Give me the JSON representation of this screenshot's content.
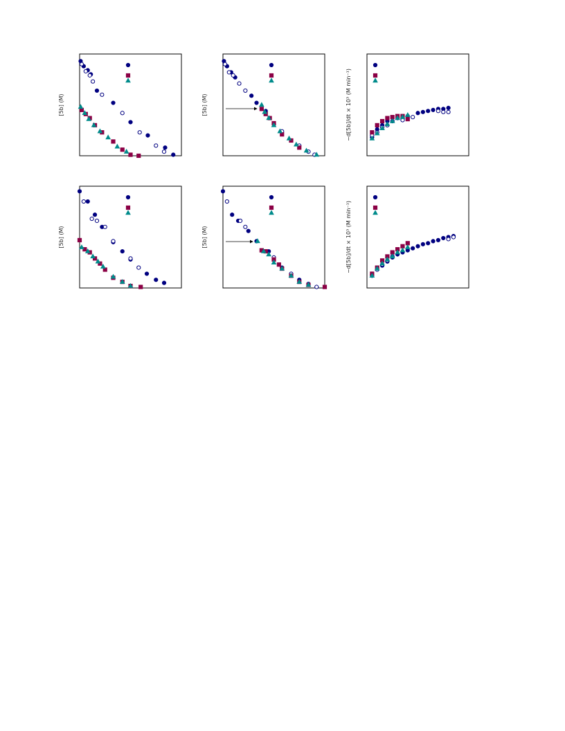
{
  "chart_data": [
    {
      "type": "scatter",
      "ylabel": "[5b] (M)",
      "xlim": [
        0,
        1
      ],
      "ylim": [
        0,
        1
      ],
      "series": [
        {
          "color": "#000080",
          "marker": "circle",
          "filled": true,
          "x": [
            0.01,
            0.04,
            0.08,
            0.11,
            0.17,
            0.33,
            0.5,
            0.67,
            0.84,
            0.92
          ],
          "values": [
            0.93,
            0.88,
            0.84,
            0.8,
            0.64,
            0.52,
            0.33,
            0.2,
            0.08,
            0.01
          ]
        },
        {
          "color": "#000080",
          "marker": "circle",
          "filled": false,
          "x": [
            0.02,
            0.06,
            0.1,
            0.13,
            0.22,
            0.42,
            0.59,
            0.75,
            0.83
          ],
          "values": [
            0.9,
            0.83,
            0.79,
            0.73,
            0.6,
            0.42,
            0.23,
            0.1,
            0.04
          ]
        },
        {
          "color": "#8b0045",
          "marker": "square",
          "filled": true,
          "x": [
            0.02,
            0.06,
            0.1,
            0.15,
            0.22,
            0.33,
            0.42,
            0.5,
            0.58
          ],
          "values": [
            0.45,
            0.41,
            0.37,
            0.3,
            0.23,
            0.14,
            0.06,
            0.01,
            0.0
          ]
        },
        {
          "color": "#008b8b",
          "marker": "triangle",
          "filled": true,
          "x": [
            0.01,
            0.05,
            0.09,
            0.14,
            0.2,
            0.28,
            0.37,
            0.46
          ],
          "values": [
            0.48,
            0.42,
            0.36,
            0.3,
            0.24,
            0.18,
            0.09,
            0.04
          ]
        }
      ]
    },
    {
      "type": "scatter",
      "ylabel": "[5b] (M)",
      "xlim": [
        0,
        1
      ],
      "ylim": [
        0,
        1
      ],
      "series": [
        {
          "color": "#000080",
          "marker": "circle",
          "filled": true,
          "x": [
            0.01,
            0.04,
            0.08,
            0.12,
            0.28,
            0.33,
            0.42
          ],
          "values": [
            0.93,
            0.88,
            0.82,
            0.77,
            0.59,
            0.52,
            0.44
          ]
        },
        {
          "color": "#000080",
          "marker": "circle",
          "filled": false,
          "x": [
            0.02,
            0.06,
            0.1,
            0.16,
            0.22,
            0.58,
            0.75,
            0.84,
            0.9
          ],
          "values": [
            0.9,
            0.82,
            0.79,
            0.71,
            0.64,
            0.24,
            0.1,
            0.04,
            0.01
          ]
        },
        {
          "color": "#8b0045",
          "marker": "square",
          "filled": true,
          "x": [
            0.38,
            0.42,
            0.46,
            0.5,
            0.58,
            0.67,
            0.75
          ],
          "values": [
            0.46,
            0.41,
            0.37,
            0.32,
            0.21,
            0.15,
            0.08
          ]
        },
        {
          "color": "#008b8b",
          "marker": "triangle",
          "filled": true,
          "x": [
            0.38,
            0.41,
            0.45,
            0.5,
            0.56,
            0.65,
            0.72,
            0.82,
            0.92
          ],
          "values": [
            0.5,
            0.43,
            0.37,
            0.3,
            0.24,
            0.17,
            0.11,
            0.05,
            0.01
          ]
        }
      ]
    },
    {
      "type": "scatter",
      "ylabel": "−d[5b]/dt × 10³ (M min⁻¹)",
      "xlim": [
        0,
        1
      ],
      "ylim": [
        0,
        1
      ],
      "series": [
        {
          "color": "#000080",
          "marker": "circle",
          "filled": true,
          "x": [
            0.05,
            0.1,
            0.15,
            0.2,
            0.3,
            0.4,
            0.5,
            0.55,
            0.6,
            0.65,
            0.7,
            0.75,
            0.8
          ],
          "values": [
            0.18,
            0.26,
            0.3,
            0.34,
            0.37,
            0.39,
            0.42,
            0.43,
            0.44,
            0.45,
            0.46,
            0.46,
            0.47
          ]
        },
        {
          "color": "#000080",
          "marker": "circle",
          "filled": false,
          "x": [
            0.05,
            0.1,
            0.15,
            0.2,
            0.25,
            0.35,
            0.45,
            0.7,
            0.75,
            0.8
          ],
          "values": [
            0.2,
            0.23,
            0.28,
            0.3,
            0.34,
            0.35,
            0.38,
            0.44,
            0.43,
            0.43
          ]
        },
        {
          "color": "#8b0045",
          "marker": "square",
          "filled": true,
          "x": [
            0.05,
            0.1,
            0.15,
            0.2,
            0.25,
            0.3,
            0.35,
            0.4
          ],
          "values": [
            0.23,
            0.3,
            0.34,
            0.37,
            0.38,
            0.39,
            0.39,
            0.36
          ]
        },
        {
          "color": "#008b8b",
          "marker": "triangle",
          "filled": true,
          "x": [
            0.05,
            0.1,
            0.15,
            0.2,
            0.25,
            0.3,
            0.35,
            0.4
          ],
          "values": [
            0.17,
            0.22,
            0.27,
            0.31,
            0.34,
            0.37,
            0.38,
            0.4
          ]
        }
      ]
    },
    {
      "type": "scatter",
      "ylabel": "[5b] (M)",
      "xlim": [
        0,
        1
      ],
      "ylim": [
        0,
        1
      ],
      "series": [
        {
          "color": "#000080",
          "marker": "circle",
          "filled": true,
          "x": [
            0.0,
            0.08,
            0.15,
            0.22,
            0.33,
            0.42,
            0.5,
            0.66,
            0.75,
            0.83
          ],
          "values": [
            0.95,
            0.85,
            0.72,
            0.6,
            0.45,
            0.36,
            0.28,
            0.14,
            0.08,
            0.05
          ]
        },
        {
          "color": "#000080",
          "marker": "circle",
          "filled": false,
          "x": [
            0.04,
            0.12,
            0.17,
            0.25,
            0.33,
            0.5,
            0.58
          ],
          "values": [
            0.85,
            0.68,
            0.66,
            0.6,
            0.46,
            0.29,
            0.2
          ]
        },
        {
          "color": "#8b0045",
          "marker": "square",
          "filled": true,
          "x": [
            0.0,
            0.05,
            0.1,
            0.15,
            0.2,
            0.25,
            0.33,
            0.42,
            0.5,
            0.6
          ],
          "values": [
            0.47,
            0.38,
            0.35,
            0.29,
            0.24,
            0.18,
            0.1,
            0.06,
            0.02,
            0.01
          ]
        },
        {
          "color": "#008b8b",
          "marker": "triangle",
          "filled": true,
          "x": [
            0.02,
            0.08,
            0.13,
            0.18,
            0.23,
            0.33,
            0.42,
            0.5
          ],
          "values": [
            0.4,
            0.36,
            0.31,
            0.26,
            0.21,
            0.11,
            0.06,
            0.02
          ]
        }
      ]
    },
    {
      "type": "scatter",
      "ylabel": "[5b] (M)",
      "xlim": [
        0,
        1
      ],
      "ylim": [
        0,
        1
      ],
      "series": [
        {
          "color": "#000080",
          "marker": "circle",
          "filled": true,
          "x": [
            0.0,
            0.09,
            0.15,
            0.25,
            0.33,
            0.45,
            0.58,
            0.75
          ],
          "values": [
            0.95,
            0.72,
            0.66,
            0.56,
            0.46,
            0.36,
            0.2,
            0.08
          ]
        },
        {
          "color": "#000080",
          "marker": "circle",
          "filled": false,
          "x": [
            0.04,
            0.17,
            0.22,
            0.5,
            0.67,
            0.84,
            0.92
          ],
          "values": [
            0.85,
            0.66,
            0.6,
            0.3,
            0.14,
            0.04,
            0.01
          ]
        },
        {
          "color": "#8b0045",
          "marker": "square",
          "filled": true,
          "x": [
            0.38,
            0.42,
            0.5,
            0.55,
            0.58,
            0.67,
            0.75,
            0.84,
            1.0
          ],
          "values": [
            0.37,
            0.36,
            0.28,
            0.23,
            0.19,
            0.12,
            0.06,
            0.03,
            0.01
          ]
        },
        {
          "color": "#008b8b",
          "marker": "triangle",
          "filled": true,
          "x": [
            0.34,
            0.4,
            0.45,
            0.5,
            0.58,
            0.67,
            0.75,
            0.84
          ],
          "values": [
            0.46,
            0.36,
            0.33,
            0.25,
            0.19,
            0.12,
            0.06,
            0.03
          ]
        }
      ]
    },
    {
      "type": "scatter",
      "ylabel": "−d[5b]/dt × 10³ (M min⁻¹)",
      "xlim": [
        0,
        1
      ],
      "ylim": [
        0,
        1
      ],
      "series": [
        {
          "color": "#000080",
          "marker": "circle",
          "filled": true,
          "x": [
            0.05,
            0.15,
            0.2,
            0.25,
            0.3,
            0.35,
            0.4,
            0.45,
            0.5,
            0.55,
            0.6,
            0.65,
            0.7,
            0.75,
            0.8,
            0.85
          ],
          "values": [
            0.13,
            0.22,
            0.26,
            0.3,
            0.33,
            0.35,
            0.37,
            0.39,
            0.41,
            0.43,
            0.44,
            0.46,
            0.47,
            0.49,
            0.5,
            0.51
          ]
        },
        {
          "color": "#000080",
          "marker": "circle",
          "filled": false,
          "x": [
            0.05,
            0.1,
            0.15,
            0.2,
            0.25,
            0.8,
            0.85
          ],
          "values": [
            0.12,
            0.18,
            0.23,
            0.27,
            0.31,
            0.48,
            0.5
          ]
        },
        {
          "color": "#8b0045",
          "marker": "square",
          "filled": true,
          "x": [
            0.05,
            0.1,
            0.15,
            0.2,
            0.25,
            0.3,
            0.35,
            0.4
          ],
          "values": [
            0.14,
            0.2,
            0.27,
            0.31,
            0.35,
            0.38,
            0.41,
            0.44
          ]
        },
        {
          "color": "#008b8b",
          "marker": "triangle",
          "filled": true,
          "x": [
            0.05,
            0.1,
            0.15,
            0.2,
            0.25,
            0.3,
            0.35,
            0.4
          ],
          "values": [
            0.12,
            0.19,
            0.24,
            0.28,
            0.31,
            0.35,
            0.37,
            0.4
          ]
        }
      ]
    }
  ]
}
